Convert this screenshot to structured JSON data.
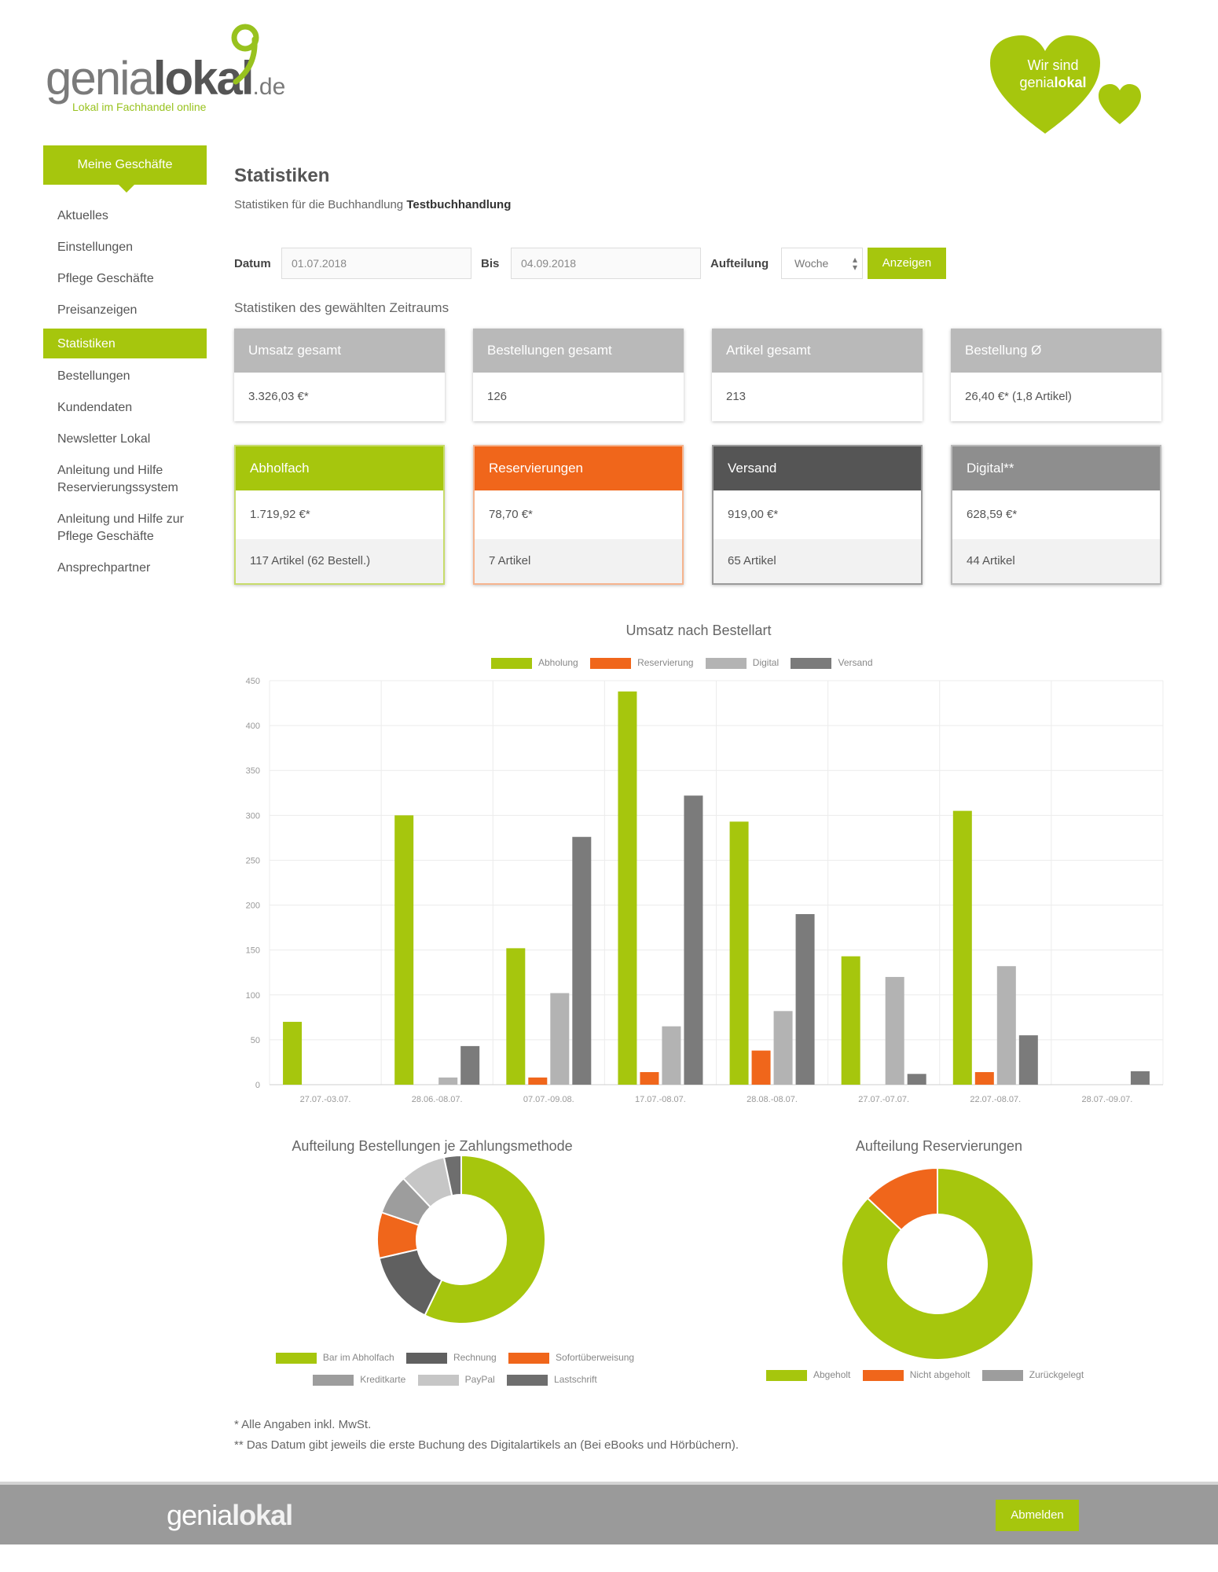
{
  "brand": {
    "name_light": "genia",
    "name_bold": "lokal",
    "tld": ".de",
    "tagline": "Lokal im Fachhandel online",
    "heart_line1": "Wir sind",
    "heart_line2": "genia",
    "heart_line2_bold": "lokal"
  },
  "sidebar": {
    "header": "Meine Geschäfte",
    "items": [
      {
        "label": "Aktuelles"
      },
      {
        "label": "Einstellungen"
      },
      {
        "label": "Pflege Geschäfte"
      },
      {
        "label": "Preisanzeigen"
      },
      {
        "label": "Statistiken"
      },
      {
        "label": "Bestellungen"
      },
      {
        "label": "Kundendaten"
      },
      {
        "label": "Newsletter Lokal"
      },
      {
        "label": "Anleitung und Hilfe Reservierungssystem"
      },
      {
        "label": "Anleitung und Hilfe zur Pflege Geschäfte"
      },
      {
        "label": "Ansprechpartner"
      }
    ]
  },
  "main": {
    "title": "Statistiken",
    "subtitle_prefix": "Statistiken für die Buchhandlung",
    "subtitle_store": "Testbuchhandlung",
    "filter": {
      "from_label": "Datum",
      "from_value": "01.07.2018",
      "to_label": "Bis",
      "to_value": "04.09.2018",
      "split_label": "Aufteilung",
      "split_value": "Woche",
      "submit": "Anzeigen"
    },
    "section_caption": "Statistiken des gewählten Zeitraums",
    "summary": [
      {
        "title": "Umsatz gesamt",
        "value": "3.326,03 €*"
      },
      {
        "title": "Bestellungen gesamt",
        "value": "126"
      },
      {
        "title": "Artikel gesamt",
        "value": "213"
      },
      {
        "title": "Bestellung Ø",
        "value": "26,40 €* (1,8 Artikel)"
      }
    ],
    "channels": [
      {
        "title": "Abholfach",
        "value": "1.719,92 €*",
        "sub": "117 Artikel (62 Bestell.)",
        "color": "#a6c60d"
      },
      {
        "title": "Reservierungen",
        "value": "78,70 €*",
        "sub": "7 Artikel",
        "color": "#f0661b"
      },
      {
        "title": "Versand",
        "value": "919,00 €*",
        "sub": "65 Artikel",
        "color": "#555555"
      },
      {
        "title": "Digital**",
        "value": "628,59 €*",
        "sub": "44 Artikel",
        "color": "#8e8e8e"
      }
    ]
  },
  "chart_data": [
    {
      "type": "bar",
      "title": "Umsatz nach Bestellart",
      "categories": [
        "27.07.-03.07.",
        "28.06.-08.07.",
        "07.07.-09.08.",
        "17.07.-08.07.",
        "28.08.-08.07.",
        "27.07.-07.07.",
        "22.07.-08.07.",
        "28.07.-09.07."
      ],
      "ylim": [
        0,
        450
      ],
      "yticks": [
        "0",
        "50",
        "100",
        "150",
        "200",
        "250",
        "300",
        "350",
        "400",
        "450"
      ],
      "series": [
        {
          "name": "Abholung",
          "color": "#a6c60d",
          "values": [
            70,
            300,
            152,
            438,
            293,
            143,
            305,
            0
          ]
        },
        {
          "name": "Reservierung",
          "color": "#f0661b",
          "values": [
            0,
            0,
            8,
            14,
            38,
            0,
            14,
            0
          ]
        },
        {
          "name": "Digital",
          "color": "#b3b3b3",
          "values": [
            0,
            8,
            102,
            65,
            82,
            120,
            132,
            0
          ]
        },
        {
          "name": "Versand",
          "color": "#7b7b7b",
          "values": [
            0,
            43,
            276,
            322,
            190,
            12,
            55,
            15
          ]
        }
      ]
    },
    {
      "type": "pie",
      "title": "Aufteilung Bestellungen je Zahlungsmethode",
      "labels": [
        "Bar im Abholfach",
        "Rechnung",
        "Sofortüberweisung",
        "Kreditkarte",
        "PayPal",
        "Lastschrift"
      ],
      "values": [
        52,
        13,
        8,
        7,
        8,
        3
      ],
      "colors": [
        "#a6c60d",
        "#606060",
        "#f0661b",
        "#9d9d9d",
        "#c6c6c6",
        "#6e6e6e"
      ]
    },
    {
      "type": "pie",
      "title": "Aufteilung Reservierungen",
      "labels": [
        "Abgeholt",
        "Nicht abgeholt",
        "Zurückgelegt"
      ],
      "values": [
        87,
        13,
        0
      ],
      "colors": [
        "#a6c60d",
        "#f0661b",
        "#9d9d9d"
      ]
    }
  ],
  "footnotes": [
    "* Alle Angaben inkl. MwSt.",
    "** Das Datum gibt jeweils die erste Buchung des Digitalartikels an (Bei eBooks und Hörbüchern)."
  ],
  "footer": {
    "logo_light": "genia",
    "logo_bold": "lokal",
    "button": "Abmelden"
  }
}
